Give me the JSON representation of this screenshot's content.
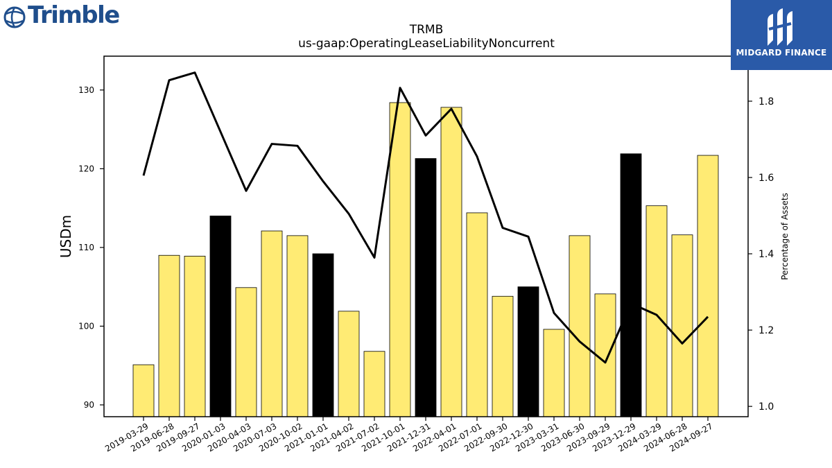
{
  "logos": {
    "left_text": "Trimble",
    "right_text": "MIDGARD FINANCE"
  },
  "chart_data": {
    "type": "bar",
    "title": "TRMB",
    "subtitle": "us-gaap:OperatingLeaseLiabilityNoncurrent",
    "ylabel": "USDm",
    "y2label": "Percentage of Assets",
    "ylim": [
      88.5,
      134.3
    ],
    "y2lim": [
      0.973,
      1.918
    ],
    "yticks": [
      90,
      100,
      110,
      120,
      130
    ],
    "y2ticks": [
      "1.0",
      "1.2",
      "1.4",
      "1.6",
      "1.8"
    ],
    "categories": [
      "2019-03-29",
      "2019-06-28",
      "2019-09-27",
      "2020-01-03",
      "2020-04-03",
      "2020-07-03",
      "2020-10-02",
      "2021-01-01",
      "2021-04-02",
      "2021-07-02",
      "2021-10-01",
      "2021-12-31",
      "2022-04-01",
      "2022-07-01",
      "2022-09-30",
      "2022-12-30",
      "2023-03-31",
      "2023-06-30",
      "2023-09-29",
      "2023-12-29",
      "2024-03-29",
      "2024-06-28",
      "2024-09-27"
    ],
    "series": [
      {
        "type": "bar",
        "values": [
          95.1,
          109.0,
          108.9,
          114.0,
          104.9,
          112.1,
          111.5,
          109.2,
          101.9,
          96.8,
          128.4,
          121.3,
          127.8,
          114.4,
          103.8,
          105.0,
          99.6,
          111.5,
          104.1,
          121.9,
          115.3,
          111.6,
          121.7
        ],
        "highlight": [
          false,
          false,
          false,
          true,
          false,
          false,
          false,
          true,
          false,
          false,
          false,
          true,
          false,
          false,
          false,
          true,
          false,
          false,
          false,
          true,
          false,
          false,
          false
        ]
      },
      {
        "type": "line",
        "axis": "right",
        "values": [
          1.605,
          1.855,
          1.875,
          1.72,
          1.565,
          1.688,
          1.683,
          1.59,
          1.505,
          1.39,
          1.835,
          1.71,
          1.78,
          1.655,
          1.468,
          1.445,
          1.245,
          1.17,
          1.115,
          1.27,
          1.24,
          1.165,
          1.235
        ]
      }
    ],
    "colors": {
      "bar": "#ffeb74",
      "bar_highlight": "#000000",
      "bar_edge": "#000000",
      "line": "#000000"
    },
    "grid": false,
    "legend": "none"
  }
}
